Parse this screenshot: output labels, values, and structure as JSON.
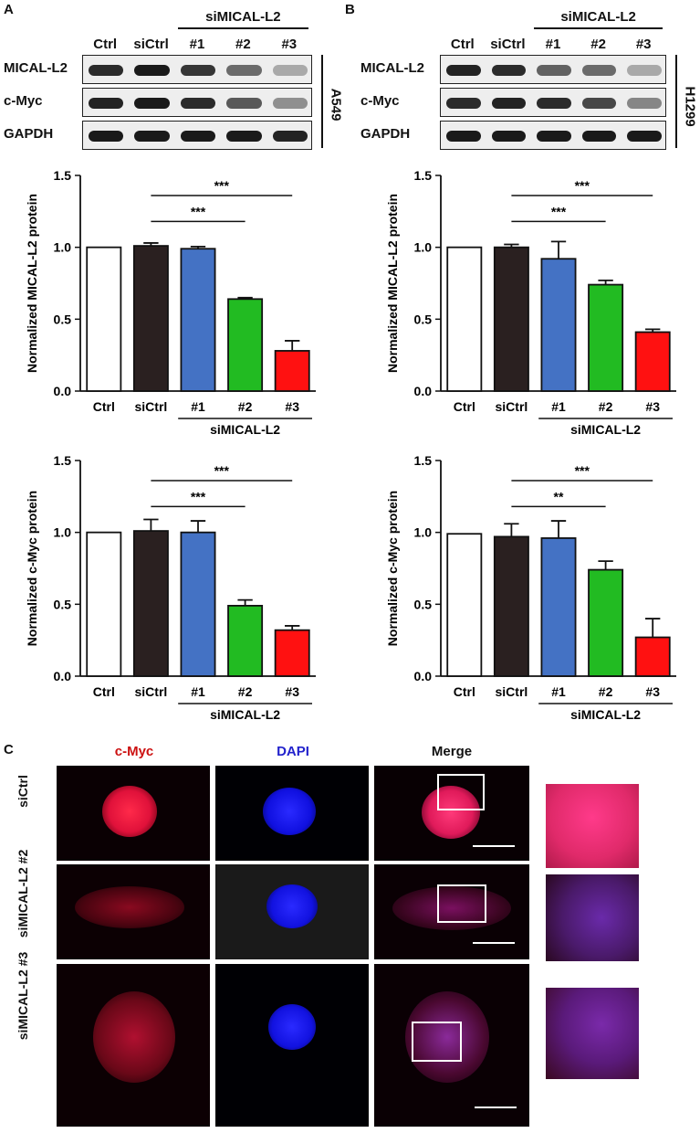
{
  "panels": {
    "a": "A",
    "b": "B",
    "c": "C"
  },
  "blots": [
    {
      "group_label": "siMICAL-L2",
      "lanes": [
        "Ctrl",
        "siCtrl",
        "#1",
        "#2",
        "#3"
      ],
      "rows": [
        {
          "label": "MICAL-L2",
          "intensity": [
            0.9,
            1.0,
            0.85,
            0.55,
            0.2
          ]
        },
        {
          "label": "c-Myc",
          "intensity": [
            0.95,
            1.0,
            0.9,
            0.65,
            0.35
          ]
        },
        {
          "label": "GAPDH",
          "intensity": [
            1.0,
            1.0,
            1.0,
            1.0,
            0.95
          ]
        }
      ],
      "cell_line": "A549"
    },
    {
      "group_label": "siMICAL-L2",
      "lanes": [
        "Ctrl",
        "siCtrl",
        "#1",
        "#2",
        "#3"
      ],
      "rows": [
        {
          "label": "MICAL-L2",
          "intensity": [
            0.95,
            0.9,
            0.6,
            0.55,
            0.2
          ]
        },
        {
          "label": "c-Myc",
          "intensity": [
            0.9,
            0.95,
            0.9,
            0.75,
            0.4
          ]
        },
        {
          "label": "GAPDH",
          "intensity": [
            1.0,
            1.0,
            1.0,
            1.0,
            1.0
          ]
        }
      ],
      "cell_line": "H1299"
    }
  ],
  "chart_data": [
    {
      "type": "bar",
      "categories": [
        "Ctrl",
        "siCtrl",
        "#1",
        "#2",
        "#3"
      ],
      "values": [
        1.0,
        1.01,
        0.99,
        0.64,
        0.28
      ],
      "errors": [
        0,
        0.02,
        0.015,
        0.01,
        0.07
      ],
      "colors": [
        "#ffffff",
        "#2a2020",
        "#4472c4",
        "#22bb22",
        "#ff1111"
      ],
      "ylabel": "Normalized MICAL-L2 protein",
      "ylim": [
        0,
        1.5
      ],
      "yticks": [
        "0.0",
        "0.5",
        "1.0",
        "1.5"
      ],
      "group_label": "siMICAL-L2",
      "significance": [
        {
          "from": 1,
          "to": 3,
          "label": "***"
        },
        {
          "from": 1,
          "to": 4,
          "label": "***"
        }
      ]
    },
    {
      "type": "bar",
      "categories": [
        "Ctrl",
        "siCtrl",
        "#1",
        "#2",
        "#3"
      ],
      "values": [
        1.0,
        1.0,
        0.92,
        0.74,
        0.41
      ],
      "errors": [
        0,
        0.02,
        0.12,
        0.03,
        0.02
      ],
      "colors": [
        "#ffffff",
        "#2a2020",
        "#4472c4",
        "#22bb22",
        "#ff1111"
      ],
      "ylabel": "Normalized MICAL-L2 protein",
      "ylim": [
        0,
        1.5
      ],
      "yticks": [
        "0.0",
        "0.5",
        "1.0",
        "1.5"
      ],
      "group_label": "siMICAL-L2",
      "significance": [
        {
          "from": 1,
          "to": 3,
          "label": "***"
        },
        {
          "from": 1,
          "to": 4,
          "label": "***"
        }
      ]
    },
    {
      "type": "bar",
      "categories": [
        "Ctrl",
        "siCtrl",
        "#1",
        "#2",
        "#3"
      ],
      "values": [
        1.0,
        1.01,
        1.0,
        0.49,
        0.32
      ],
      "errors": [
        0,
        0.08,
        0.08,
        0.04,
        0.03
      ],
      "colors": [
        "#ffffff",
        "#2a2020",
        "#4472c4",
        "#22bb22",
        "#ff1111"
      ],
      "ylabel": "Normalized c-Myc protein",
      "ylim": [
        0,
        1.5
      ],
      "yticks": [
        "0.0",
        "0.5",
        "1.0",
        "1.5"
      ],
      "group_label": "siMICAL-L2",
      "significance": [
        {
          "from": 1,
          "to": 3,
          "label": "***"
        },
        {
          "from": 1,
          "to": 4,
          "label": "***"
        }
      ]
    },
    {
      "type": "bar",
      "categories": [
        "Ctrl",
        "siCtrl",
        "#1",
        "#2",
        "#3"
      ],
      "values": [
        0.99,
        0.97,
        0.96,
        0.74,
        0.27
      ],
      "errors": [
        0,
        0.09,
        0.12,
        0.06,
        0.13
      ],
      "colors": [
        "#ffffff",
        "#2a2020",
        "#4472c4",
        "#22bb22",
        "#ff1111"
      ],
      "ylabel": "Normalized c-Myc protein",
      "ylim": [
        0,
        1.5
      ],
      "yticks": [
        "0.0",
        "0.5",
        "1.0",
        "1.5"
      ],
      "group_label": "siMICAL-L2",
      "significance": [
        {
          "from": 1,
          "to": 3,
          "label": "**"
        },
        {
          "from": 1,
          "to": 4,
          "label": "***"
        }
      ]
    }
  ],
  "if": {
    "columns": [
      {
        "label": "c-Myc",
        "color": "#cc1111"
      },
      {
        "label": "DAPI",
        "color": "#2222cc"
      },
      {
        "label": "Merge",
        "color": "#111111"
      }
    ],
    "rows": [
      "siCtrl",
      "siMICAL-L2 #2",
      "siMICAL-L2 #3"
    ]
  }
}
